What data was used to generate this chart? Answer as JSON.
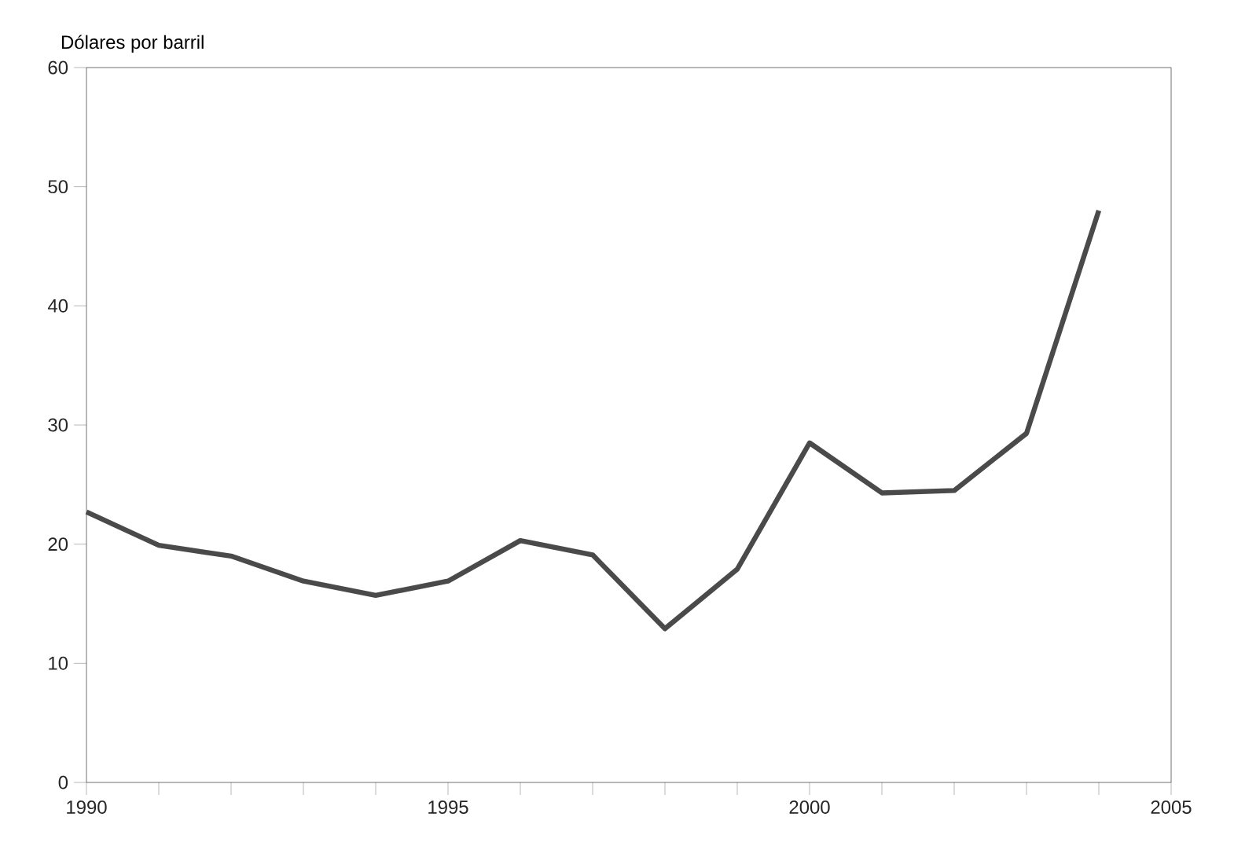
{
  "chart_data": {
    "type": "line",
    "ylabel": "Dólares por barril",
    "x": [
      1990,
      1991,
      1992,
      1993,
      1994,
      1995,
      1996,
      1997,
      1998,
      1999,
      2000,
      2001,
      2002,
      2003,
      2004
    ],
    "series": [
      {
        "color": "#4a4a4a",
        "values": [
          22.7,
          19.9,
          19.0,
          16.9,
          15.7,
          16.9,
          20.3,
          19.1,
          12.9,
          17.9,
          28.5,
          24.3,
          24.5,
          29.3,
          48.0
        ]
      }
    ],
    "xlim": [
      1990,
      2005
    ],
    "xticks": [
      1990,
      {
        "value": 1991,
        "label": null
      },
      {
        "value": 1992,
        "label": null
      },
      {
        "value": 1993,
        "label": null
      },
      {
        "value": 1994,
        "label": null
      },
      1995,
      {
        "value": 1996,
        "label": null
      },
      {
        "value": 1997,
        "label": null
      },
      {
        "value": 1998,
        "label": null
      },
      {
        "value": 1999,
        "label": null
      },
      2000,
      {
        "value": 2001,
        "label": null
      },
      {
        "value": 2002,
        "label": null
      },
      {
        "value": 2003,
        "label": null
      },
      {
        "value": 2004,
        "label": null
      },
      2005
    ],
    "ylim": [
      0,
      60
    ],
    "yticks": [
      0,
      10,
      20,
      30,
      40,
      50,
      60
    ],
    "grid": false,
    "marker": "none",
    "line_style": "solid"
  }
}
